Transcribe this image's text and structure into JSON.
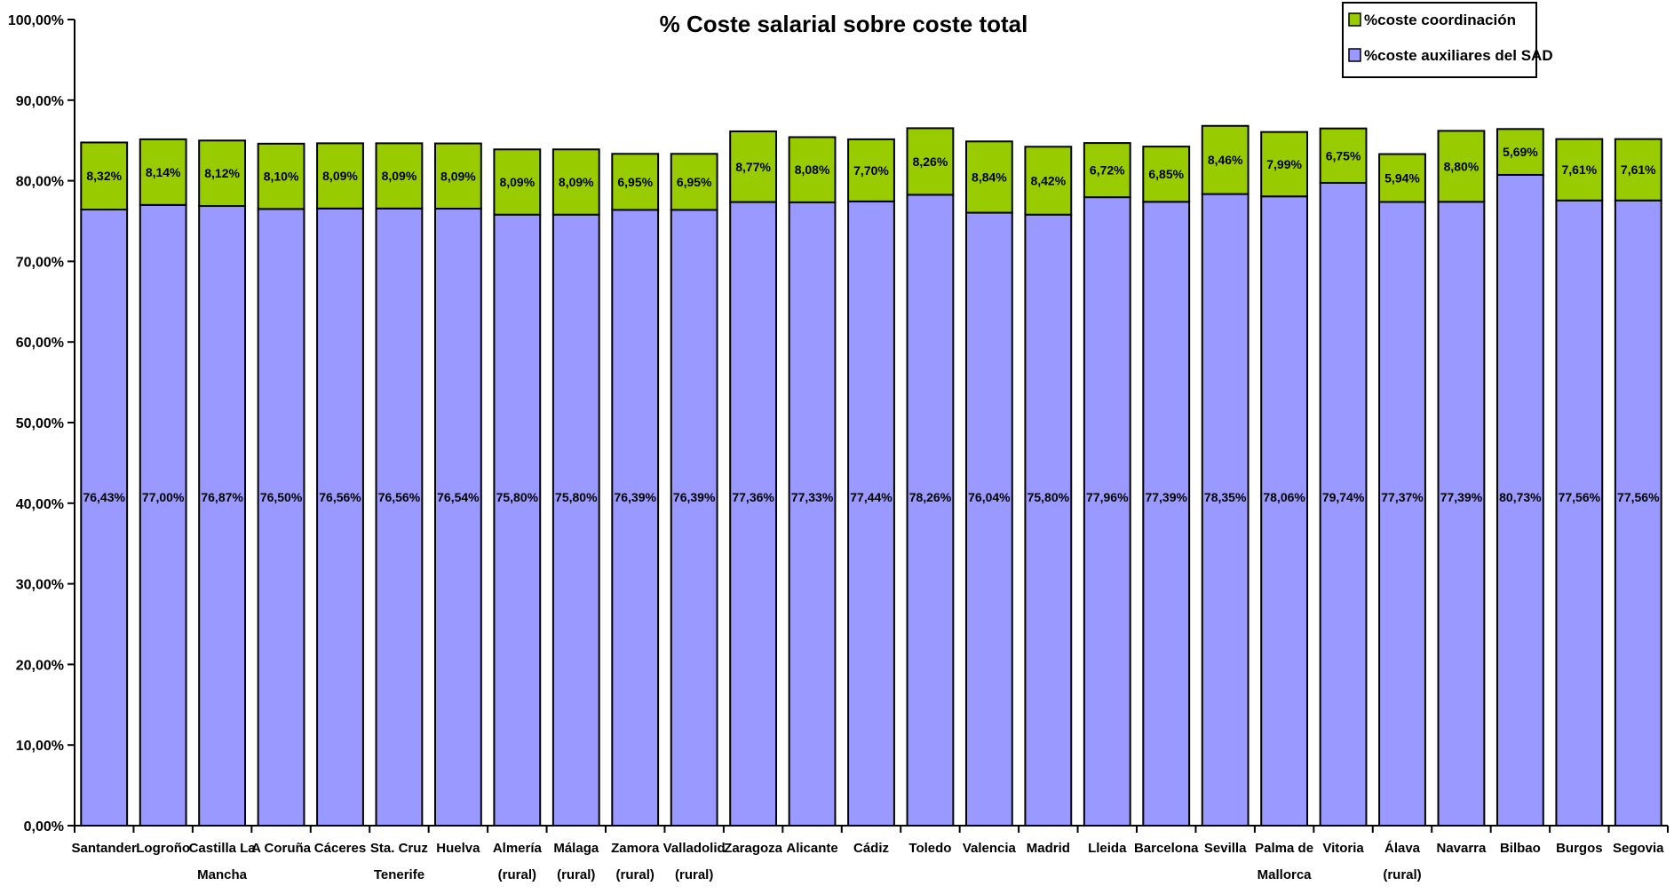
{
  "chart_data": {
    "type": "bar",
    "stacked": true,
    "title": "% Coste salarial sobre coste total",
    "xlabel": "",
    "ylabel": "",
    "ylim": [
      0,
      100
    ],
    "y_ticks": [
      "0,00%",
      "10,00%",
      "20,00%",
      "30,00%",
      "40,00%",
      "50,00%",
      "60,00%",
      "70,00%",
      "80,00%",
      "90,00%",
      "100,00%"
    ],
    "grid": false,
    "legend_position": "top-right",
    "categories": [
      [
        "Santander"
      ],
      [
        "Logroño"
      ],
      [
        "Castilla La",
        "Mancha"
      ],
      [
        "A Coruña"
      ],
      [
        "Cáceres"
      ],
      [
        "Sta. Cruz",
        "Tenerife"
      ],
      [
        "Huelva"
      ],
      [
        "Almería",
        "(rural)"
      ],
      [
        "Málaga",
        "(rural)"
      ],
      [
        "Zamora",
        "(rural)"
      ],
      [
        "Valladolid",
        "(rural)"
      ],
      [
        "Zaragoza"
      ],
      [
        "Alicante"
      ],
      [
        "Cádiz"
      ],
      [
        "Toledo"
      ],
      [
        "Valencia"
      ],
      [
        "Madrid"
      ],
      [
        "Lleida"
      ],
      [
        "Barcelona"
      ],
      [
        "Sevilla"
      ],
      [
        "Palma de",
        "Mallorca"
      ],
      [
        "Vitoria"
      ],
      [
        "Álava",
        "(rural)"
      ],
      [
        "Navarra"
      ],
      [
        "Bilbao"
      ],
      [
        "Burgos"
      ],
      [
        "Segovia"
      ]
    ],
    "series": [
      {
        "name": "%coste auxiliares del SAD",
        "color": "#9999ff",
        "values": [
          76.43,
          77.0,
          76.87,
          76.5,
          76.56,
          76.56,
          76.54,
          75.8,
          75.8,
          76.39,
          76.39,
          77.36,
          77.33,
          77.44,
          78.26,
          76.04,
          75.8,
          77.96,
          77.39,
          78.35,
          78.06,
          79.74,
          77.37,
          77.39,
          80.73,
          77.56,
          77.56
        ],
        "labels": [
          "76,43%",
          "77,00%",
          "76,87%",
          "76,50%",
          "76,56%",
          "76,56%",
          "76,54%",
          "75,80%",
          "75,80%",
          "76,39%",
          "76,39%",
          "77,36%",
          "77,33%",
          "77,44%",
          "78,26%",
          "76,04%",
          "75,80%",
          "77,96%",
          "77,39%",
          "78,35%",
          "78,06%",
          "79,74%",
          "77,37%",
          "77,39%",
          "80,73%",
          "77,56%",
          "77,56%"
        ]
      },
      {
        "name": "%coste coordinación",
        "color": "#99cc00",
        "values": [
          8.32,
          8.14,
          8.12,
          8.1,
          8.09,
          8.09,
          8.09,
          8.09,
          8.09,
          6.95,
          6.95,
          8.77,
          8.08,
          7.7,
          8.26,
          8.84,
          8.42,
          6.72,
          6.85,
          8.46,
          7.99,
          6.75,
          5.94,
          8.8,
          5.69,
          7.61,
          7.61
        ],
        "labels": [
          "8,32%",
          "8,14%",
          "8,12%",
          "8,10%",
          "8,09%",
          "8,09%",
          "8,09%",
          "8,09%",
          "8,09%",
          "6,95%",
          "6,95%",
          "8,77%",
          "8,08%",
          "7,70%",
          "8,26%",
          "8,84%",
          "8,42%",
          "6,72%",
          "6,85%",
          "8,46%",
          "7,99%",
          "6,75%",
          "5,94%",
          "8,80%",
          "5,69%",
          "7,61%",
          "7,61%"
        ]
      }
    ],
    "legend": [
      "%coste coordinación",
      "%coste auxiliares del SAD"
    ]
  }
}
